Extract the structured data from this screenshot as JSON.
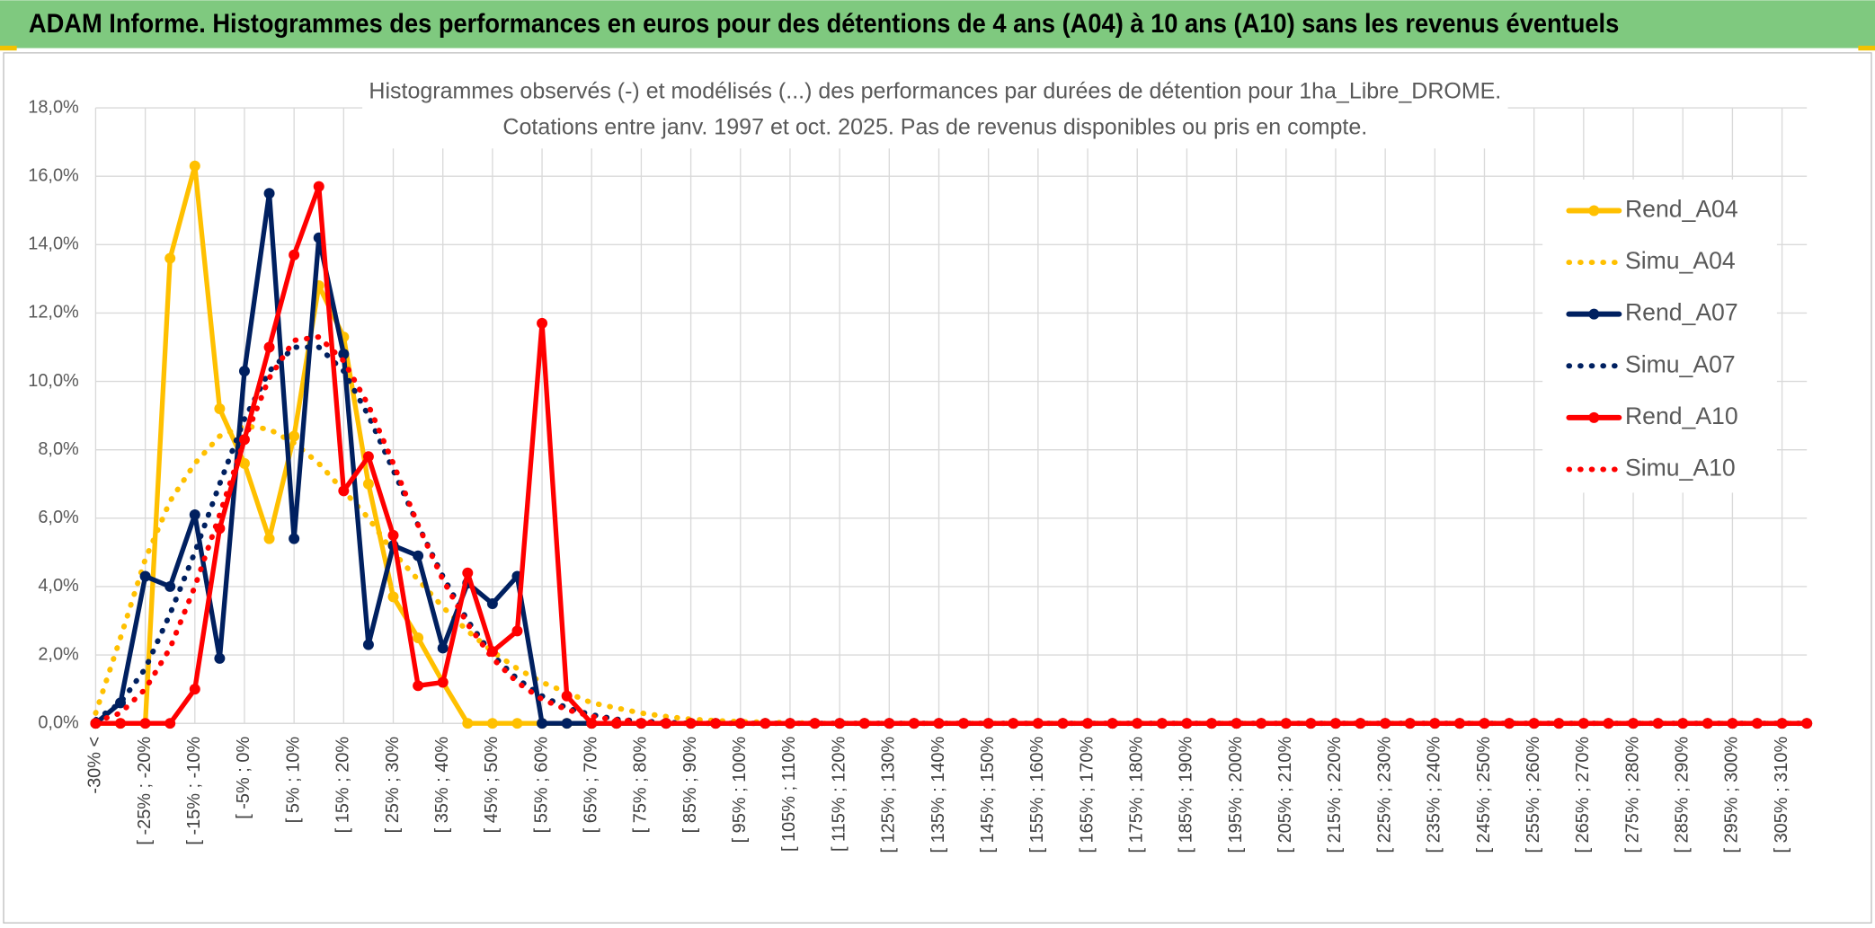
{
  "header": {
    "title": "ADAM Informe. Histogrammes des performances en euros pour des détentions de 4 ans (A04) à 10 ans (A10) sans les revenus éventuels"
  },
  "chart_data": {
    "type": "line",
    "title": [
      "Histogrammes observés (-) et modélisés (...) des performances par durées de détention pour 1ha_Libre_DROME.",
      "Cotations entre janv. 1997 et oct. 2025. Pas de revenus disponibles ou pris en compte."
    ],
    "categories": [
      "-30% <",
      null,
      "[ -25% ; -20%",
      null,
      "[ -15% ; -10%",
      null,
      "[ -5% ; 0%",
      null,
      "[ 5% ; 10%",
      null,
      "[ 15% ; 20%",
      null,
      "[ 25% ; 30%",
      null,
      "[ 35% ; 40%",
      null,
      "[ 45% ; 50%",
      null,
      "[ 55% ; 60%",
      null,
      "[ 65% ; 70%",
      null,
      "[ 75% ; 80%",
      null,
      "[ 85% ; 90%",
      null,
      "[ 95% ; 100%",
      null,
      "[ 105% ; 110%",
      null,
      "[ 115% ; 120%",
      null,
      "[ 125% ; 130%",
      null,
      "[ 135% ; 140%",
      null,
      "[ 145% ; 150%",
      null,
      "[ 155% ; 160%",
      null,
      "[ 165% ; 170%",
      null,
      "[ 175% ; 180%",
      null,
      "[ 185% ; 190%",
      null,
      "[ 195% ; 200%",
      null,
      "[ 205% ; 210%",
      null,
      "[ 215% ; 220%",
      null,
      "[ 225% ; 230%",
      null,
      "[ 235% ; 240%",
      null,
      "[ 245% ; 250%",
      null,
      "[ 255% ; 260%",
      null,
      "[ 265% ; 270%",
      null,
      "[ 275% ; 280%",
      null,
      "[ 285% ; 290%",
      null,
      "[ 295% ; 300%",
      null,
      "[ 305% ; 310%",
      null
    ],
    "series": [
      {
        "name": "Rend_A04",
        "color": "#FFC000",
        "style": "solid",
        "values": [
          0,
          0,
          0,
          13.6,
          16.3,
          9.2,
          7.6,
          5.4,
          8.4,
          12.8,
          11.3,
          7.0,
          3.7,
          2.5,
          1.2,
          0,
          0,
          0,
          0,
          0,
          0,
          0,
          0,
          0,
          0,
          0,
          0,
          0,
          0,
          0,
          0,
          0,
          0,
          0,
          0,
          0,
          0,
          0,
          0,
          0,
          0,
          0,
          0,
          0,
          0,
          0,
          0,
          0,
          0,
          0,
          0,
          0,
          0,
          0,
          0,
          0,
          0,
          0,
          0,
          0,
          0,
          0,
          0,
          0,
          0,
          0,
          0,
          0,
          0,
          0
        ]
      },
      {
        "name": "Simu_A04",
        "color": "#FFC000",
        "style": "dotted",
        "values": [
          0.3,
          2.5,
          4.8,
          6.5,
          7.6,
          8.4,
          8.7,
          8.6,
          8.2,
          7.6,
          6.8,
          6.0,
          5.0,
          4.2,
          3.4,
          2.7,
          2.1,
          1.6,
          1.2,
          0.9,
          0.6,
          0.45,
          0.3,
          0.2,
          0.12,
          0.08,
          0.05,
          0.03,
          0.02,
          0,
          0,
          0,
          0,
          0,
          0,
          0,
          0,
          0,
          0,
          0,
          0,
          0,
          0,
          0,
          0,
          0,
          0,
          0,
          0,
          0,
          0,
          0,
          0,
          0,
          0,
          0,
          0,
          0,
          0,
          0,
          0,
          0,
          0,
          0,
          0,
          0,
          0,
          0,
          0,
          0
        ]
      },
      {
        "name": "Rend_A07",
        "color": "#002060",
        "style": "solid",
        "values": [
          0,
          0.6,
          4.3,
          4.0,
          6.1,
          1.9,
          10.3,
          15.5,
          5.4,
          14.2,
          10.8,
          2.3,
          5.2,
          4.9,
          2.2,
          4.1,
          3.5,
          4.3,
          0,
          0,
          0,
          0,
          0,
          0,
          0,
          0,
          0,
          0,
          0,
          0,
          0,
          0,
          0,
          0,
          0,
          0,
          0,
          0,
          0,
          0,
          0,
          0,
          0,
          0,
          0,
          0,
          0,
          0,
          0,
          0,
          0,
          0,
          0,
          0,
          0,
          0,
          0,
          0,
          0,
          0,
          0,
          0,
          0,
          0,
          0,
          0,
          0,
          0,
          0,
          0
        ]
      },
      {
        "name": "Simu_A07",
        "color": "#002060",
        "style": "dotted",
        "values": [
          0.1,
          0.6,
          1.6,
          3.2,
          5.0,
          7.0,
          8.9,
          10.3,
          11.0,
          11.0,
          10.3,
          9.0,
          7.4,
          5.8,
          4.3,
          3.0,
          2.0,
          1.3,
          0.8,
          0.45,
          0.25,
          0.12,
          0.06,
          0.03,
          0,
          0,
          0,
          0,
          0,
          0,
          0,
          0,
          0,
          0,
          0,
          0,
          0,
          0,
          0,
          0,
          0,
          0,
          0,
          0,
          0,
          0,
          0,
          0,
          0,
          0,
          0,
          0,
          0,
          0,
          0,
          0,
          0,
          0,
          0,
          0,
          0,
          0,
          0,
          0,
          0,
          0,
          0,
          0,
          0,
          0
        ]
      },
      {
        "name": "Rend_A10",
        "color": "#FF0000",
        "style": "solid",
        "values": [
          0,
          0,
          0,
          0,
          1.0,
          5.7,
          8.3,
          11.0,
          13.7,
          15.7,
          6.8,
          7.8,
          5.5,
          1.1,
          1.2,
          4.4,
          2.1,
          2.7,
          11.7,
          0.8,
          0,
          0,
          0,
          0,
          0,
          0,
          0,
          0,
          0,
          0,
          0,
          0,
          0,
          0,
          0,
          0,
          0,
          0,
          0,
          0,
          0,
          0,
          0,
          0,
          0,
          0,
          0,
          0,
          0,
          0,
          0,
          0,
          0,
          0,
          0,
          0,
          0,
          0,
          0,
          0,
          0,
          0,
          0,
          0,
          0,
          0,
          0,
          0,
          0,
          0
        ]
      },
      {
        "name": "Simu_A10",
        "color": "#FF0000",
        "style": "dotted",
        "values": [
          0.05,
          0.3,
          1.0,
          2.2,
          4.0,
          6.1,
          8.3,
          10.1,
          11.2,
          11.3,
          10.6,
          9.3,
          7.6,
          5.8,
          4.2,
          2.9,
          1.9,
          1.2,
          0.7,
          0.4,
          0.2,
          0.1,
          0.05,
          0,
          0,
          0,
          0,
          0,
          0,
          0,
          0,
          0,
          0,
          0,
          0,
          0,
          0,
          0,
          0,
          0,
          0,
          0,
          0,
          0,
          0,
          0,
          0,
          0,
          0,
          0,
          0,
          0,
          0,
          0,
          0,
          0,
          0,
          0,
          0,
          0,
          0,
          0,
          0,
          0,
          0,
          0,
          0,
          0,
          0,
          0
        ]
      }
    ],
    "ylim": [
      0,
      18
    ],
    "yticks": [
      {
        "value": 0,
        "label": "0,0%"
      },
      {
        "value": 2,
        "label": "2,0%"
      },
      {
        "value": 4,
        "label": "4,0%"
      },
      {
        "value": 6,
        "label": "6,0%"
      },
      {
        "value": 8,
        "label": "8,0%"
      },
      {
        "value": 10,
        "label": "10,0%"
      },
      {
        "value": 12,
        "label": "12,0%"
      },
      {
        "value": 14,
        "label": "14,0%"
      },
      {
        "value": 16,
        "label": "16,0%"
      },
      {
        "value": 18,
        "label": "18,0%"
      }
    ],
    "grid": true,
    "legend": "upper right"
  }
}
